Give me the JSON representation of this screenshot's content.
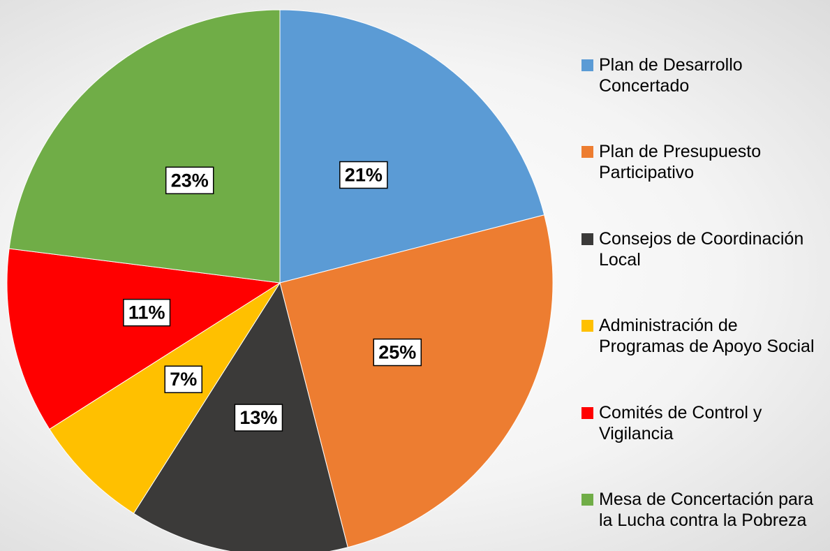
{
  "chart_data": {
    "type": "pie",
    "categories": [
      "Plan de Desarrollo Concertado",
      "Plan de Presupuesto Participativo",
      "Consejos de Coordinación Local",
      "Administración de Programas de Apoyo Social",
      "Comités de Control y Vigilancia",
      "Mesa de Concertación para la Lucha contra la Pobreza"
    ],
    "values": [
      21,
      25,
      13,
      7,
      11,
      23
    ],
    "value_labels": [
      "21%",
      "25%",
      "13%",
      "7%",
      "11%",
      "23%"
    ],
    "colors": [
      "#5b9bd5",
      "#ed7d31",
      "#3b3a39",
      "#ffc000",
      "#ff0000",
      "#70ad47"
    ],
    "legend": "right"
  }
}
